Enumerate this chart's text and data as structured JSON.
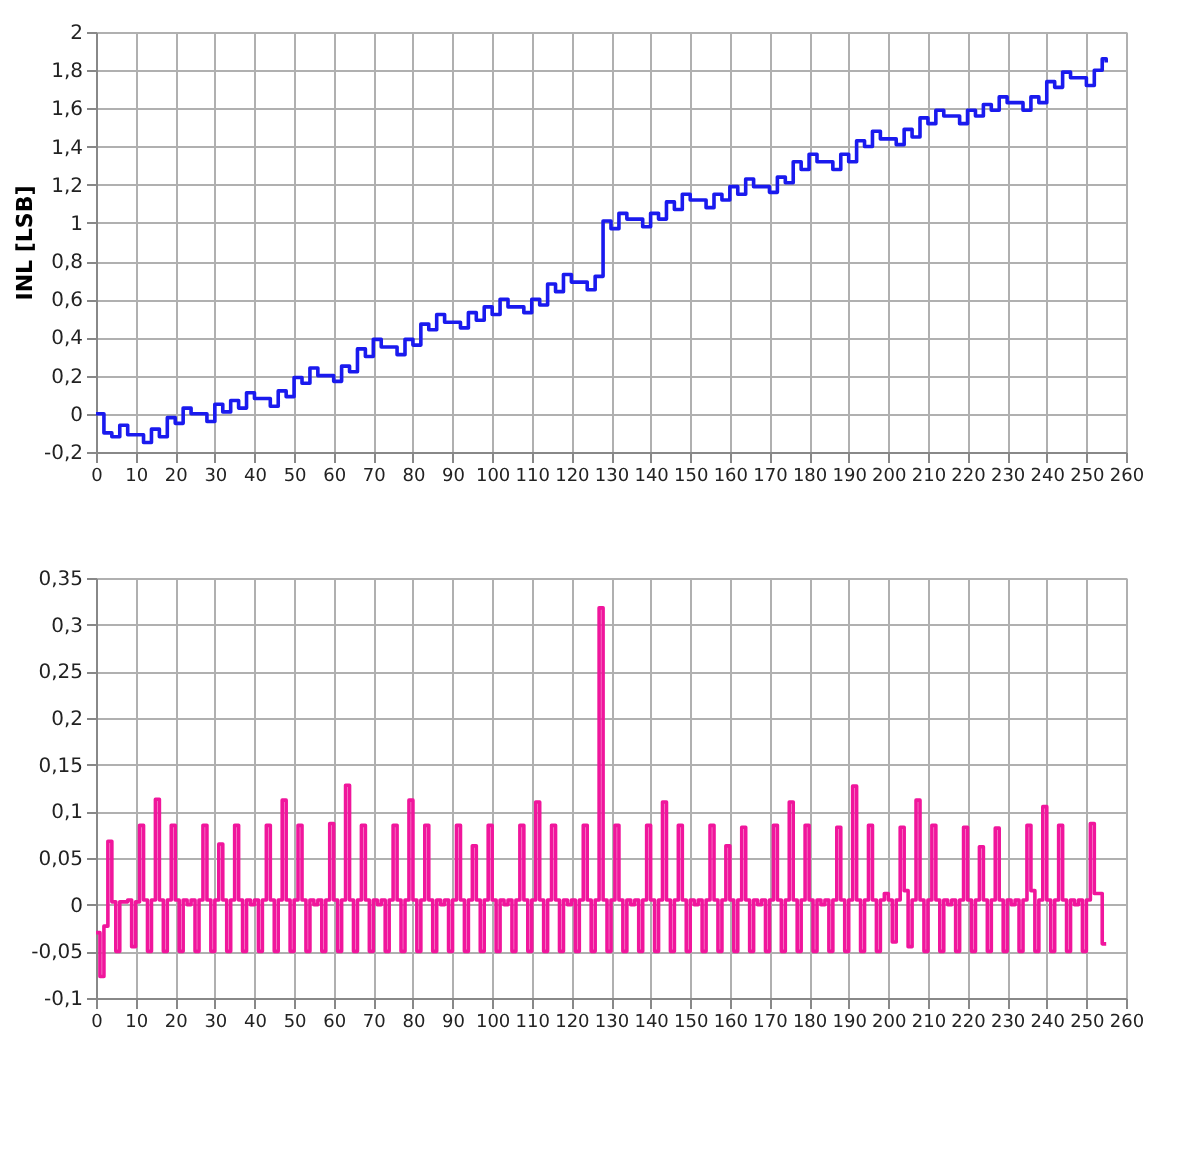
{
  "chart_data": [
    {
      "type": "step",
      "ylabel": "INL [LSB]",
      "grid": true,
      "xlim": [
        0,
        260
      ],
      "xticks": [
        0,
        10,
        20,
        30,
        40,
        50,
        60,
        70,
        80,
        90,
        100,
        110,
        120,
        130,
        140,
        150,
        160,
        170,
        180,
        190,
        200,
        210,
        220,
        230,
        240,
        250,
        260
      ],
      "ylim": [
        -0.2,
        2
      ],
      "yticks": [
        {
          "value": -0.2,
          "label": "-0,2"
        },
        0,
        {
          "value": 0.2,
          "label": "0,2"
        },
        {
          "value": 0.4,
          "label": "0,4"
        },
        {
          "value": 0.6,
          "label": "0,6"
        },
        {
          "value": 0.8,
          "label": "0,8"
        },
        1,
        {
          "value": 1.2,
          "label": "1,2"
        },
        {
          "value": 1.4,
          "label": "1,4"
        },
        {
          "value": 1.6,
          "label": "1,6"
        },
        {
          "value": 1.8,
          "label": "1,8"
        },
        2
      ],
      "series": [
        {
          "color": "#1a1aee",
          "x": [
            0,
            2,
            4,
            6,
            8,
            10,
            12,
            14,
            16,
            18,
            20,
            22,
            24,
            26,
            28,
            30,
            32,
            34,
            36,
            38,
            40,
            42,
            44,
            46,
            48,
            50,
            52,
            54,
            56,
            58,
            60,
            62,
            64,
            66,
            68,
            70,
            72,
            74,
            76,
            78,
            80,
            82,
            84,
            86,
            88,
            90,
            92,
            94,
            96,
            98,
            100,
            102,
            104,
            106,
            108,
            110,
            112,
            114,
            116,
            118,
            120,
            122,
            124,
            126,
            128,
            130,
            132,
            134,
            136,
            138,
            140,
            142,
            144,
            146,
            148,
            150,
            152,
            154,
            156,
            158,
            160,
            162,
            164,
            166,
            168,
            170,
            172,
            174,
            176,
            178,
            180,
            182,
            184,
            186,
            188,
            190,
            192,
            194,
            196,
            198,
            200,
            202,
            204,
            206,
            208,
            210,
            212,
            214,
            216,
            218,
            220,
            222,
            224,
            226,
            228,
            230,
            232,
            234,
            236,
            238,
            240,
            242,
            244,
            246,
            248,
            250,
            252,
            254,
            255
          ],
          "values": [
            0,
            -0.1,
            -0.12,
            -0.06,
            -0.11,
            -0.11,
            -0.15,
            -0.08,
            -0.12,
            -0.02,
            -0.05,
            0.03,
            0,
            0,
            -0.04,
            0.05,
            0.01,
            0.07,
            0.03,
            0.11,
            0.08,
            0.08,
            0.04,
            0.12,
            0.09,
            0.19,
            0.16,
            0.24,
            0.2,
            0.2,
            0.17,
            0.25,
            0.22,
            0.34,
            0.3,
            0.39,
            0.35,
            0.35,
            0.31,
            0.39,
            0.36,
            0.47,
            0.44,
            0.52,
            0.48,
            0.48,
            0.45,
            0.53,
            0.49,
            0.56,
            0.52,
            0.6,
            0.56,
            0.56,
            0.53,
            0.6,
            0.57,
            0.68,
            0.64,
            0.73,
            0.69,
            0.69,
            0.65,
            0.72,
            1.01,
            0.97,
            1.05,
            1.02,
            1.02,
            0.98,
            1.05,
            1.02,
            1.11,
            1.07,
            1.15,
            1.12,
            1.12,
            1.08,
            1.15,
            1.12,
            1.19,
            1.15,
            1.23,
            1.19,
            1.19,
            1.16,
            1.24,
            1.21,
            1.32,
            1.28,
            1.36,
            1.32,
            1.32,
            1.28,
            1.36,
            1.32,
            1.43,
            1.4,
            1.48,
            1.44,
            1.44,
            1.41,
            1.49,
            1.45,
            1.55,
            1.52,
            1.59,
            1.56,
            1.56,
            1.52,
            1.59,
            1.56,
            1.62,
            1.59,
            1.66,
            1.63,
            1.63,
            1.59,
            1.66,
            1.63,
            1.74,
            1.71,
            1.79,
            1.76,
            1.76,
            1.72,
            1.8,
            1.86,
            1.84
          ]
        }
      ]
    },
    {
      "type": "step",
      "grid": true,
      "xlim": [
        0,
        260
      ],
      "xticks": [
        0,
        10,
        20,
        30,
        40,
        50,
        60,
        70,
        80,
        90,
        100,
        110,
        120,
        130,
        140,
        150,
        160,
        170,
        180,
        190,
        200,
        210,
        220,
        230,
        240,
        250,
        260
      ],
      "ylim": [
        -0.1,
        0.35
      ],
      "yticks": [
        {
          "value": -0.1,
          "label": "-0,1"
        },
        {
          "value": -0.05,
          "label": "-0,05"
        },
        0,
        {
          "value": 0.05,
          "label": "0,05"
        },
        {
          "value": 0.1,
          "label": "0,1"
        },
        {
          "value": 0.15,
          "label": "0,15"
        },
        {
          "value": 0.2,
          "label": "0,2"
        },
        {
          "value": 0.25,
          "label": "0,25"
        },
        {
          "value": 0.3,
          "label": "0,3"
        },
        {
          "value": 0.35,
          "label": "0,35"
        }
      ],
      "series": [
        {
          "color": "#f0169c",
          "x": [
            0,
            1,
            2,
            3,
            4,
            5,
            6,
            7,
            8,
            9,
            10,
            11,
            12,
            13,
            14,
            15,
            16,
            17,
            18,
            19,
            20,
            21,
            22,
            23,
            24,
            25,
            26,
            27,
            28,
            29,
            30,
            31,
            32,
            33,
            34,
            35,
            36,
            37,
            38,
            39,
            40,
            41,
            42,
            43,
            44,
            45,
            46,
            47,
            48,
            49,
            50,
            51,
            52,
            53,
            54,
            55,
            56,
            57,
            58,
            59,
            60,
            61,
            62,
            63,
            64,
            65,
            66,
            67,
            68,
            69,
            70,
            71,
            72,
            73,
            74,
            75,
            76,
            77,
            78,
            79,
            80,
            81,
            82,
            83,
            84,
            85,
            86,
            87,
            88,
            89,
            90,
            91,
            92,
            93,
            94,
            95,
            96,
            97,
            98,
            99,
            100,
            101,
            102,
            103,
            104,
            105,
            106,
            107,
            108,
            109,
            110,
            111,
            112,
            113,
            114,
            115,
            116,
            117,
            118,
            119,
            120,
            121,
            122,
            123,
            124,
            125,
            126,
            127,
            128,
            129,
            130,
            131,
            132,
            133,
            134,
            135,
            136,
            137,
            138,
            139,
            140,
            141,
            142,
            143,
            144,
            145,
            146,
            147,
            148,
            149,
            150,
            151,
            152,
            153,
            154,
            155,
            156,
            157,
            158,
            159,
            160,
            161,
            162,
            163,
            164,
            165,
            166,
            167,
            168,
            169,
            170,
            171,
            172,
            173,
            174,
            175,
            176,
            177,
            178,
            179,
            180,
            181,
            182,
            183,
            184,
            185,
            186,
            187,
            188,
            189,
            190,
            191,
            192,
            193,
            194,
            195,
            196,
            197,
            198,
            199,
            200,
            201,
            202,
            203,
            204,
            205,
            206,
            207,
            208,
            209,
            210,
            211,
            212,
            213,
            214,
            215,
            216,
            217,
            218,
            219,
            220,
            221,
            222,
            223,
            224,
            225,
            226,
            227,
            228,
            229,
            230,
            231,
            232,
            233,
            234,
            235,
            236,
            237,
            238,
            239,
            240,
            241,
            242,
            243,
            244,
            245,
            246,
            247,
            248,
            249,
            250,
            251,
            252,
            253,
            254,
            255
          ],
          "values": [
            -0.03,
            -0.077,
            -0.023,
            0.068,
            0.003,
            -0.05,
            0.003,
            0.003,
            0.005,
            -0.045,
            0.003,
            0.085,
            0.005,
            -0.05,
            0.005,
            0.113,
            0.005,
            -0.05,
            0.005,
            0.085,
            0.005,
            -0.05,
            0.005,
            0,
            0.005,
            -0.05,
            0.005,
            0.085,
            0.005,
            -0.05,
            0.005,
            0.065,
            0.005,
            -0.05,
            0.005,
            0.085,
            0.005,
            -0.05,
            0.005,
            0,
            0.005,
            -0.05,
            0.005,
            0.085,
            0.005,
            -0.05,
            0.005,
            0.112,
            0.005,
            -0.05,
            0.005,
            0.085,
            0.005,
            -0.05,
            0.005,
            0,
            0.005,
            -0.05,
            0.005,
            0.087,
            0.005,
            -0.05,
            0.005,
            0.128,
            0.005,
            -0.05,
            0.005,
            0.085,
            0.005,
            -0.05,
            0.005,
            0,
            0.005,
            -0.05,
            0.005,
            0.085,
            0.005,
            -0.05,
            0.005,
            0.112,
            0.005,
            -0.05,
            0.005,
            0.085,
            0.005,
            -0.05,
            0.005,
            0,
            0.005,
            -0.05,
            0.005,
            0.085,
            0.005,
            -0.05,
            0.005,
            0.063,
            0.005,
            -0.05,
            0.005,
            0.085,
            0.005,
            -0.05,
            0.005,
            0,
            0.005,
            -0.05,
            0.005,
            0.085,
            0.005,
            -0.05,
            0.005,
            0.11,
            0.005,
            -0.05,
            0.005,
            0.085,
            0.005,
            -0.05,
            0.005,
            0,
            0.005,
            -0.05,
            0.005,
            0.085,
            0.005,
            -0.05,
            0.005,
            0.318,
            0.005,
            -0.05,
            0.005,
            0.085,
            0.005,
            -0.05,
            0.005,
            0,
            0.005,
            -0.05,
            0.005,
            0.085,
            0.005,
            -0.05,
            0.005,
            0.11,
            0.005,
            -0.05,
            0.005,
            0.085,
            0.005,
            -0.05,
            0.005,
            0,
            0.005,
            -0.05,
            0.005,
            0.085,
            0.005,
            -0.05,
            0.005,
            0.063,
            0.005,
            -0.05,
            0.005,
            0.083,
            0.005,
            -0.05,
            0.005,
            0,
            0.005,
            -0.05,
            0.005,
            0.085,
            0.005,
            -0.05,
            0.005,
            0.11,
            0.005,
            -0.05,
            0.005,
            0.085,
            0.005,
            -0.05,
            0.005,
            0,
            0.005,
            -0.05,
            0.005,
            0.083,
            0.005,
            -0.05,
            0.005,
            0.127,
            0.005,
            -0.05,
            0.005,
            0.085,
            0.005,
            -0.05,
            0.005,
            0.012,
            0.005,
            -0.04,
            0.005,
            0.083,
            0.015,
            -0.045,
            0.005,
            0.112,
            0.005,
            -0.05,
            0.005,
            0.085,
            0.005,
            -0.05,
            0.005,
            0,
            0.005,
            -0.05,
            0.005,
            0.083,
            0.005,
            -0.05,
            0.005,
            0.062,
            0.005,
            -0.05,
            0.005,
            0.082,
            0.005,
            -0.05,
            0.005,
            0,
            0.005,
            -0.05,
            0.005,
            0.085,
            0.015,
            -0.05,
            0.005,
            0.105,
            0.005,
            -0.05,
            0.005,
            0.085,
            0.005,
            -0.05,
            0.005,
            0,
            0.005,
            -0.05,
            0.005,
            0.087,
            0.012,
            0.012,
            -0.042,
            -0.042
          ]
        }
      ]
    }
  ]
}
